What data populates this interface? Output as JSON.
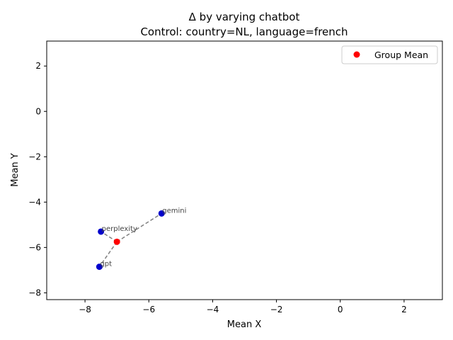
{
  "chart_data": {
    "type": "scatter",
    "title": "Δ by varying chatbot",
    "subtitle": "Control: country=NL, language=french",
    "xlabel": "Mean X",
    "ylabel": "Mean Y",
    "xlim": [
      -9.2,
      3.2
    ],
    "ylim": [
      -8.3,
      3.1
    ],
    "xticks": [
      -8,
      -6,
      -4,
      -2,
      0,
      2
    ],
    "yticks": [
      -8,
      -6,
      -4,
      -2,
      0,
      2
    ],
    "grid": false,
    "legend_position": "top-right",
    "group_mean": {
      "name": "Group Mean",
      "color": "#ff0000",
      "x": -7.0,
      "y": -5.75
    },
    "points": [
      {
        "label": "gemini",
        "x": -5.6,
        "y": -4.5,
        "color": "#0000cc"
      },
      {
        "label": "perplexity",
        "x": -7.5,
        "y": -5.3,
        "color": "#0000cc"
      },
      {
        "label": "gpt",
        "x": -7.55,
        "y": -6.85,
        "color": "#0000cc"
      }
    ],
    "connector_color": "#808080"
  }
}
